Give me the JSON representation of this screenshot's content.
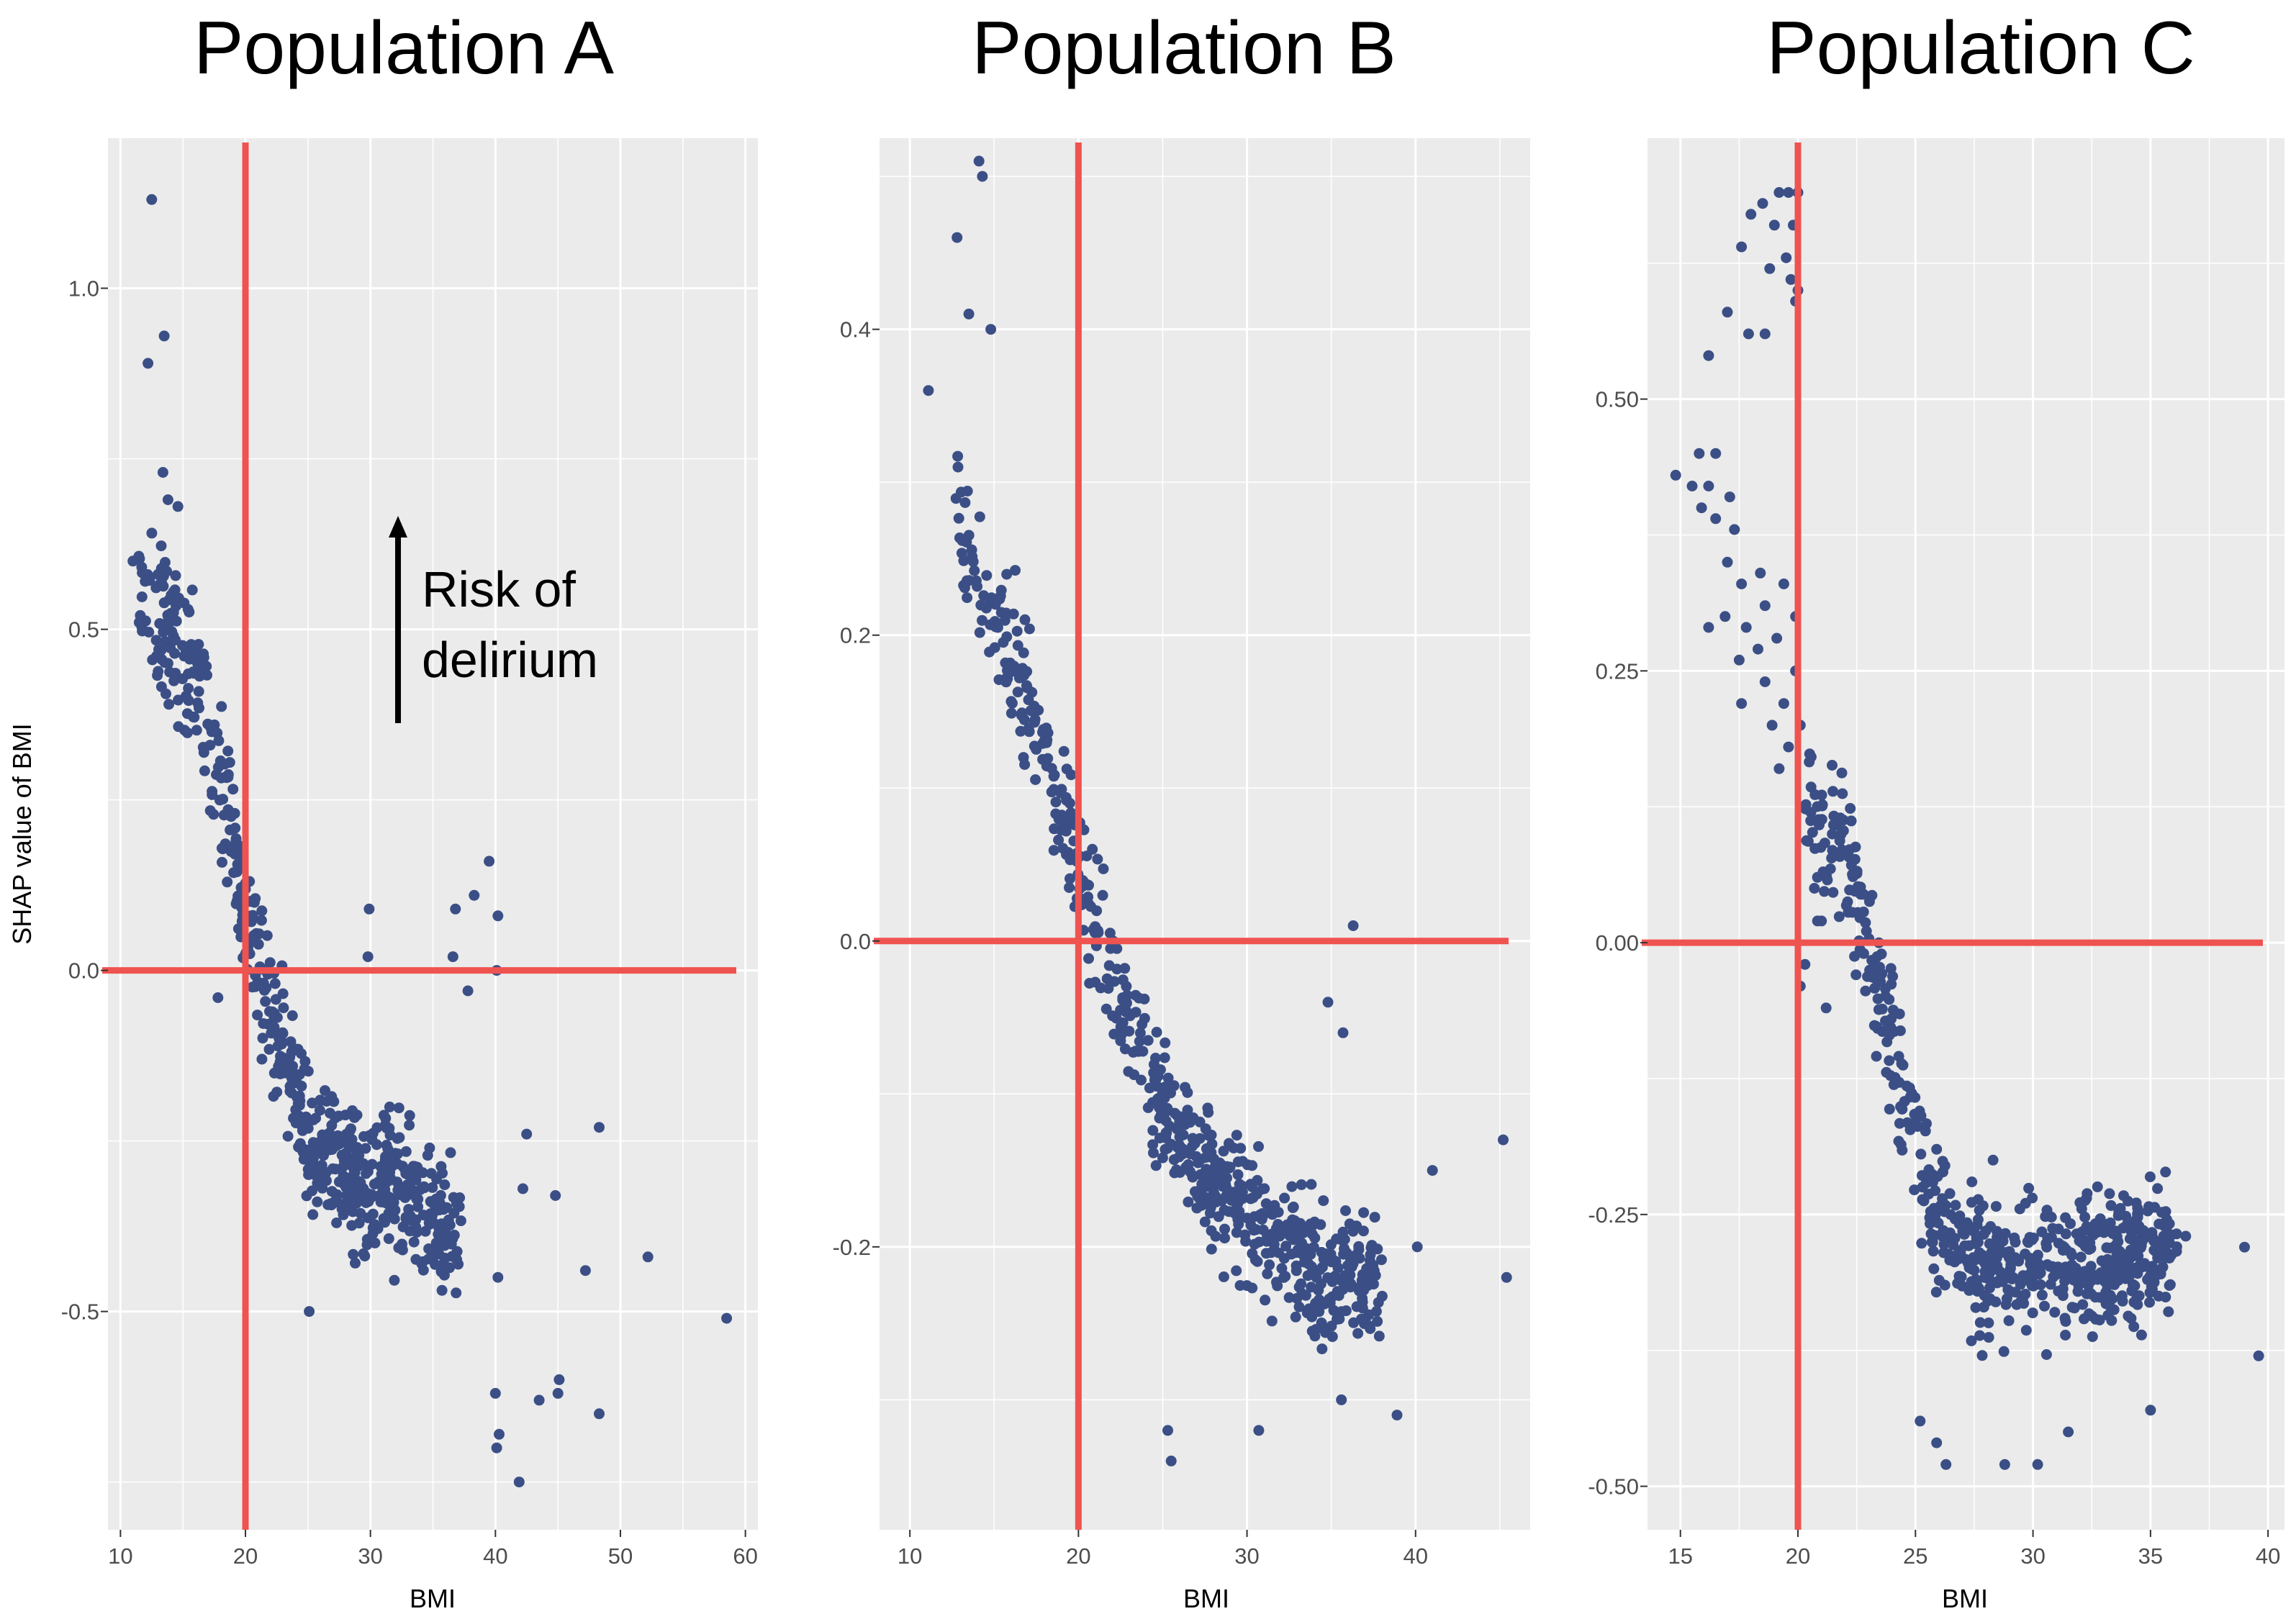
{
  "figure": {
    "xlabel": "BMI",
    "ylabel": "SHAP value of BMI",
    "annotation": {
      "line1": "Risk of",
      "line2": "delirium"
    },
    "colors": {
      "panel_bg": "#ebebeb",
      "grid": "#ffffff",
      "point": "#3b4f86",
      "refline": "#ef5350",
      "arrow": "#000000"
    }
  },
  "chart_data": [
    {
      "type": "scatter",
      "title": "Population A",
      "xlabel": "BMI",
      "ylabel": "SHAP value of BMI",
      "xlim": [
        9,
        61
      ],
      "ylim": [
        -0.82,
        1.22
      ],
      "xticks": [
        10,
        20,
        30,
        40,
        50,
        60
      ],
      "yticks": [
        -0.5,
        0.0,
        0.5,
        1.0
      ],
      "ytick_labels": [
        "-0.5",
        "0.0",
        "0.5",
        "1.0"
      ],
      "reference_lines": {
        "x": 20,
        "y": 0.0
      },
      "dense_trend": [
        [
          11.5,
          0.55
        ],
        [
          14,
          0.5
        ],
        [
          16,
          0.42
        ],
        [
          18,
          0.28
        ],
        [
          19.5,
          0.12
        ],
        [
          21,
          0.02
        ],
        [
          23,
          -0.12
        ],
        [
          25,
          -0.24
        ],
        [
          27,
          -0.3
        ],
        [
          29,
          -0.3
        ],
        [
          31,
          -0.3
        ],
        [
          33,
          -0.32
        ],
        [
          35,
          -0.36
        ],
        [
          37,
          -0.38
        ]
      ],
      "noted_points": [
        {
          "x": 12.5,
          "y": 1.13
        },
        {
          "x": 12.2,
          "y": 0.89
        },
        {
          "x": 13.5,
          "y": 0.93
        },
        {
          "x": 11.0,
          "y": 0.6
        },
        {
          "x": 11.5,
          "y": 0.51
        },
        {
          "x": 13.4,
          "y": 0.73
        },
        {
          "x": 13.8,
          "y": 0.69
        },
        {
          "x": 14.6,
          "y": 0.68
        },
        {
          "x": 17.8,
          "y": -0.04
        },
        {
          "x": 25.1,
          "y": -0.5
        },
        {
          "x": 29.9,
          "y": 0.09
        },
        {
          "x": 29.8,
          "y": 0.02
        },
        {
          "x": 36.8,
          "y": 0.09
        },
        {
          "x": 38.3,
          "y": 0.11
        },
        {
          "x": 39.5,
          "y": 0.16
        },
        {
          "x": 40.2,
          "y": 0.08
        },
        {
          "x": 40.1,
          "y": 0.0
        },
        {
          "x": 36.6,
          "y": 0.02
        },
        {
          "x": 37.8,
          "y": -0.03
        },
        {
          "x": 42.5,
          "y": -0.24
        },
        {
          "x": 48.3,
          "y": -0.23
        },
        {
          "x": 42.2,
          "y": -0.32
        },
        {
          "x": 44.8,
          "y": -0.33
        },
        {
          "x": 40.2,
          "y": -0.45
        },
        {
          "x": 47.2,
          "y": -0.44
        },
        {
          "x": 52.2,
          "y": -0.42
        },
        {
          "x": 58.5,
          "y": -0.51
        },
        {
          "x": 40.0,
          "y": -0.62
        },
        {
          "x": 40.3,
          "y": -0.68
        },
        {
          "x": 40.1,
          "y": -0.7
        },
        {
          "x": 43.5,
          "y": -0.63
        },
        {
          "x": 45.0,
          "y": -0.62
        },
        {
          "x": 45.1,
          "y": -0.6
        },
        {
          "x": 41.9,
          "y": -0.75
        },
        {
          "x": 48.3,
          "y": -0.65
        }
      ]
    },
    {
      "type": "scatter",
      "title": "Population B",
      "xlabel": "BMI",
      "ylabel": "",
      "xlim": [
        8.2,
        46.8
      ],
      "ylim": [
        -0.385,
        0.525
      ],
      "xticks": [
        10,
        20,
        30,
        40
      ],
      "yticks": [
        -0.2,
        0.0,
        0.2,
        0.4
      ],
      "ytick_labels": [
        "-0.2",
        "0.0",
        "0.2",
        "0.4"
      ],
      "reference_lines": {
        "x": 20,
        "y": 0.0
      },
      "dense_trend": [
        [
          12.5,
          0.3
        ],
        [
          14,
          0.24
        ],
        [
          16,
          0.19
        ],
        [
          18,
          0.12
        ],
        [
          20,
          0.05
        ],
        [
          22,
          -0.03
        ],
        [
          24,
          -0.08
        ],
        [
          26,
          -0.13
        ],
        [
          28,
          -0.16
        ],
        [
          30,
          -0.18
        ],
        [
          32,
          -0.2
        ],
        [
          35,
          -0.22
        ],
        [
          38,
          -0.22
        ]
      ],
      "noted_points": [
        {
          "x": 14.1,
          "y": 0.51
        },
        {
          "x": 14.3,
          "y": 0.5
        },
        {
          "x": 12.8,
          "y": 0.46
        },
        {
          "x": 14.8,
          "y": 0.4
        },
        {
          "x": 13.5,
          "y": 0.41
        },
        {
          "x": 11.1,
          "y": 0.36
        },
        {
          "x": 36.3,
          "y": 0.01
        },
        {
          "x": 45.2,
          "y": -0.13
        },
        {
          "x": 45.4,
          "y": -0.22
        },
        {
          "x": 34.8,
          "y": -0.04
        },
        {
          "x": 35.7,
          "y": -0.06
        },
        {
          "x": 40.1,
          "y": -0.2
        },
        {
          "x": 35.6,
          "y": -0.3
        },
        {
          "x": 38.9,
          "y": -0.31
        },
        {
          "x": 25.5,
          "y": -0.34
        },
        {
          "x": 25.3,
          "y": -0.32
        },
        {
          "x": 30.7,
          "y": -0.32
        },
        {
          "x": 41.0,
          "y": -0.15
        }
      ]
    },
    {
      "type": "scatter",
      "title": "Population C",
      "xlabel": "BMI",
      "ylabel": "",
      "xlim": [
        13.6,
        40.7
      ],
      "ylim": [
        -0.54,
        0.74
      ],
      "xticks": [
        15,
        20,
        25,
        30,
        35,
        40
      ],
      "yticks": [
        -0.5,
        -0.25,
        0.0,
        0.25,
        0.5
      ],
      "ytick_labels": [
        "-0.50",
        "-0.25",
        "0.00",
        "0.25",
        "0.50"
      ],
      "reference_lines": {
        "x": 20,
        "y": 0.0
      },
      "dense_trend": [
        [
          20.2,
          0.13
        ],
        [
          21,
          0.11
        ],
        [
          22,
          0.09
        ],
        [
          22.7,
          0.02
        ],
        [
          23.5,
          -0.04
        ],
        [
          24,
          -0.08
        ],
        [
          24.5,
          -0.15
        ],
        [
          25,
          -0.2
        ],
        [
          26,
          -0.26
        ],
        [
          27,
          -0.29
        ],
        [
          28,
          -0.3
        ],
        [
          30,
          -0.3
        ],
        [
          33,
          -0.29
        ],
        [
          36,
          -0.28
        ]
      ],
      "noted_points": [
        {
          "x": 18.5,
          "y": 0.68
        },
        {
          "x": 19.2,
          "y": 0.69
        },
        {
          "x": 19.6,
          "y": 0.69
        },
        {
          "x": 20.0,
          "y": 0.69
        },
        {
          "x": 18.0,
          "y": 0.67
        },
        {
          "x": 19.0,
          "y": 0.66
        },
        {
          "x": 19.8,
          "y": 0.66
        },
        {
          "x": 17.6,
          "y": 0.64
        },
        {
          "x": 19.5,
          "y": 0.63
        },
        {
          "x": 18.8,
          "y": 0.62
        },
        {
          "x": 19.7,
          "y": 0.61
        },
        {
          "x": 20.0,
          "y": 0.6
        },
        {
          "x": 19.9,
          "y": 0.59
        },
        {
          "x": 17.0,
          "y": 0.58
        },
        {
          "x": 17.9,
          "y": 0.56
        },
        {
          "x": 18.6,
          "y": 0.56
        },
        {
          "x": 16.2,
          "y": 0.54
        },
        {
          "x": 15.8,
          "y": 0.45
        },
        {
          "x": 16.5,
          "y": 0.45
        },
        {
          "x": 14.8,
          "y": 0.43
        },
        {
          "x": 15.5,
          "y": 0.42
        },
        {
          "x": 16.2,
          "y": 0.42
        },
        {
          "x": 17.1,
          "y": 0.41
        },
        {
          "x": 15.9,
          "y": 0.4
        },
        {
          "x": 16.5,
          "y": 0.39
        },
        {
          "x": 17.3,
          "y": 0.38
        },
        {
          "x": 17.0,
          "y": 0.35
        },
        {
          "x": 17.6,
          "y": 0.33
        },
        {
          "x": 18.4,
          "y": 0.34
        },
        {
          "x": 16.9,
          "y": 0.3
        },
        {
          "x": 17.8,
          "y": 0.29
        },
        {
          "x": 18.6,
          "y": 0.31
        },
        {
          "x": 19.4,
          "y": 0.33
        },
        {
          "x": 16.2,
          "y": 0.29
        },
        {
          "x": 17.5,
          "y": 0.26
        },
        {
          "x": 18.3,
          "y": 0.27
        },
        {
          "x": 19.1,
          "y": 0.28
        },
        {
          "x": 19.9,
          "y": 0.3
        },
        {
          "x": 17.6,
          "y": 0.22
        },
        {
          "x": 18.6,
          "y": 0.24
        },
        {
          "x": 19.4,
          "y": 0.22
        },
        {
          "x": 18.9,
          "y": 0.2
        },
        {
          "x": 19.6,
          "y": 0.18
        },
        {
          "x": 19.2,
          "y": 0.16
        },
        {
          "x": 19.9,
          "y": 0.25
        },
        {
          "x": 20.1,
          "y": 0.2
        },
        {
          "x": 20.7,
          "y": 0.05
        },
        {
          "x": 21.0,
          "y": 0.02
        },
        {
          "x": 20.3,
          "y": -0.02
        },
        {
          "x": 21.2,
          "y": -0.06
        },
        {
          "x": 20.1,
          "y": -0.04
        },
        {
          "x": 22.8,
          "y": -0.01
        },
        {
          "x": 36.5,
          "y": -0.27
        },
        {
          "x": 35.3,
          "y": -0.29
        },
        {
          "x": 33.8,
          "y": -0.3
        },
        {
          "x": 39.0,
          "y": -0.28
        },
        {
          "x": 39.6,
          "y": -0.38
        },
        {
          "x": 35.0,
          "y": -0.43
        },
        {
          "x": 31.5,
          "y": -0.45
        },
        {
          "x": 30.2,
          "y": -0.48
        },
        {
          "x": 26.3,
          "y": -0.48
        },
        {
          "x": 28.8,
          "y": -0.48
        },
        {
          "x": 25.9,
          "y": -0.46
        },
        {
          "x": 25.2,
          "y": -0.44
        },
        {
          "x": 28.3,
          "y": -0.2
        },
        {
          "x": 27.4,
          "y": -0.22
        },
        {
          "x": 25.9,
          "y": -0.19
        }
      ]
    }
  ]
}
